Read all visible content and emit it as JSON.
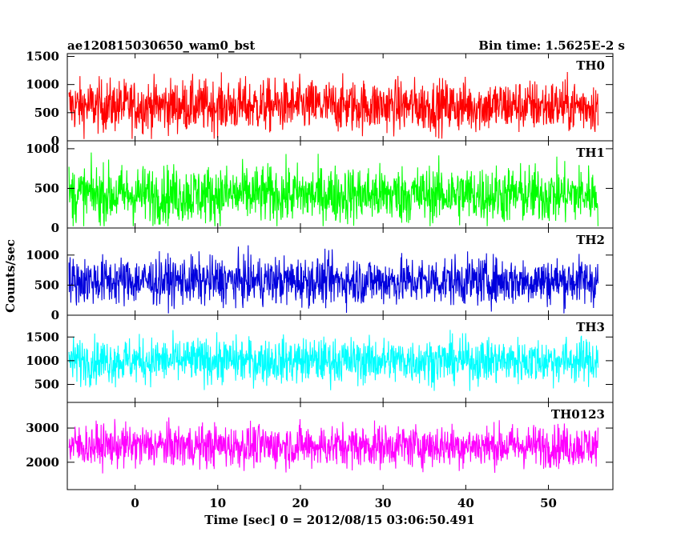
{
  "chart_data": {
    "type": "line",
    "title_left": "ae120815030650_wam0_bst",
    "title_right": "Bin time: 1.5625E-2 s",
    "ylabel": "Counts/sec",
    "xlabel": "Time [sec] 0 = 2012/08/15 03:06:50.491",
    "xlim": [
      -8.2,
      57.8
    ],
    "data_x_range": [
      -8.0,
      56.0
    ],
    "x_ticks": [
      0,
      10,
      20,
      30,
      40,
      50
    ],
    "x_tick_labels": [
      "0",
      "10",
      "20",
      "30",
      "40",
      "50"
    ],
    "grid": false,
    "legend": "panel labels top-right",
    "panels": [
      {
        "name": "TH0",
        "color": "#ff0000",
        "ylim": [
          0,
          1550
        ],
        "yticks": [
          0,
          500,
          1000,
          1500
        ],
        "ytick_labels": [
          "0",
          "500",
          "1000",
          "1500"
        ],
        "level": 620,
        "spread": 420,
        "max": 1550
      },
      {
        "name": "TH1",
        "color": "#00ff00",
        "ylim": [
          0,
          1100
        ],
        "yticks": [
          0,
          500,
          1000
        ],
        "ytick_labels": [
          "0",
          "500",
          "1000"
        ],
        "level": 420,
        "spread": 330,
        "max": 1100
      },
      {
        "name": "TH2",
        "color": "#0000dd",
        "ylim": [
          0,
          1450
        ],
        "yticks": [
          0,
          500,
          1000
        ],
        "ytick_labels": [
          "0",
          "500",
          "1000"
        ],
        "level": 570,
        "spread": 360,
        "max": 1420
      },
      {
        "name": "TH3",
        "color": "#00ffff",
        "ylim": [
          120,
          1960
        ],
        "yticks": [
          500,
          1000,
          1500
        ],
        "ytick_labels": [
          "500",
          "1000",
          "1500"
        ],
        "level": 1000,
        "spread": 430,
        "max": 1960
      },
      {
        "name": "TH0123",
        "color": "#ff00ff",
        "ylim": [
          1200,
          3750
        ],
        "yticks": [
          2000,
          3000
        ],
        "ytick_labels": [
          "2000",
          "3000"
        ],
        "level": 2480,
        "spread": 560,
        "max": 3750
      }
    ]
  }
}
